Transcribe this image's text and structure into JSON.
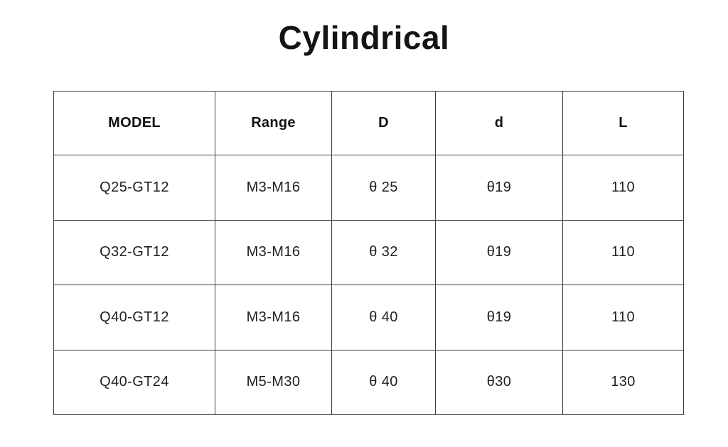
{
  "title": "Cylindrical",
  "colors": {
    "background": "#ffffff",
    "text": "#1f1f1f",
    "title_text": "#141414",
    "table_border": "#3f3f3f"
  },
  "chart_data": {
    "type": "table",
    "title": "Cylindrical",
    "columns": [
      "MODEL",
      "Range",
      "D",
      "d",
      "L"
    ],
    "rows": [
      [
        "Q25-GT12",
        "M3-M16",
        "θ 25",
        "θ19",
        "110"
      ],
      [
        "Q32-GT12",
        "M3-M16",
        "θ 32",
        "θ19",
        "110"
      ],
      [
        "Q40-GT12",
        "M3-M16",
        "θ 40",
        "θ19",
        "110"
      ],
      [
        "Q40-GT24",
        "M5-M30",
        "θ 40",
        "θ30",
        "130"
      ]
    ]
  }
}
